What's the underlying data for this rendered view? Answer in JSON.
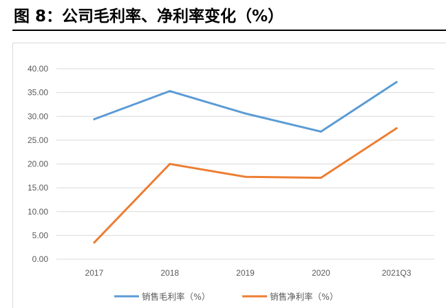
{
  "figure": {
    "title": "图 8：公司毛利率、净利率变化（%）"
  },
  "chart_data": {
    "type": "line",
    "title": "",
    "xlabel": "",
    "ylabel": "",
    "categories": [
      "2017",
      "2018",
      "2019",
      "2020",
      "2021Q3"
    ],
    "ylim": [
      0,
      40
    ],
    "yticks": [
      "0.00",
      "5.00",
      "10.00",
      "15.00",
      "20.00",
      "25.00",
      "30.00",
      "35.00",
      "40.00"
    ],
    "grid": true,
    "legend_position": "bottom",
    "series": [
      {
        "name": "销售毛利率（%）",
        "color": "#5b9bd5",
        "values": [
          29.4,
          35.3,
          30.6,
          26.8,
          37.2
        ]
      },
      {
        "name": "销售净利率（%）",
        "color": "#ed7d31",
        "values": [
          3.5,
          20.0,
          17.3,
          17.1,
          27.5
        ]
      }
    ]
  }
}
